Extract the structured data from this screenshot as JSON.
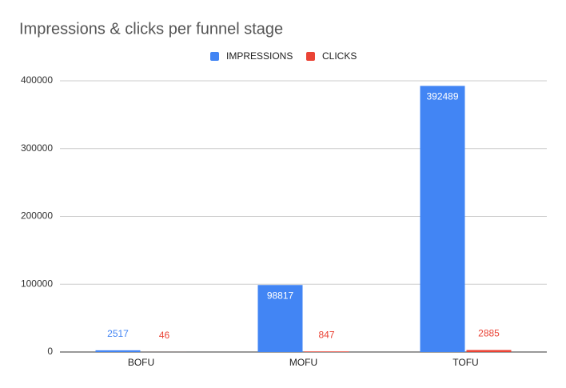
{
  "chart_data": {
    "type": "bar",
    "title": "Impressions & clicks per funnel stage",
    "categories": [
      "BOFU",
      "MOFU",
      "TOFU"
    ],
    "series": [
      {
        "name": "IMPRESSIONS",
        "color": "#4285f4",
        "values": [
          2517,
          98817,
          392489
        ]
      },
      {
        "name": "CLICKS",
        "color": "#ea4335",
        "values": [
          46,
          847,
          2885
        ]
      }
    ],
    "ylim": [
      0,
      400000
    ],
    "yticks": [
      0,
      100000,
      200000,
      300000,
      400000
    ],
    "grid": true,
    "legend": "top"
  }
}
